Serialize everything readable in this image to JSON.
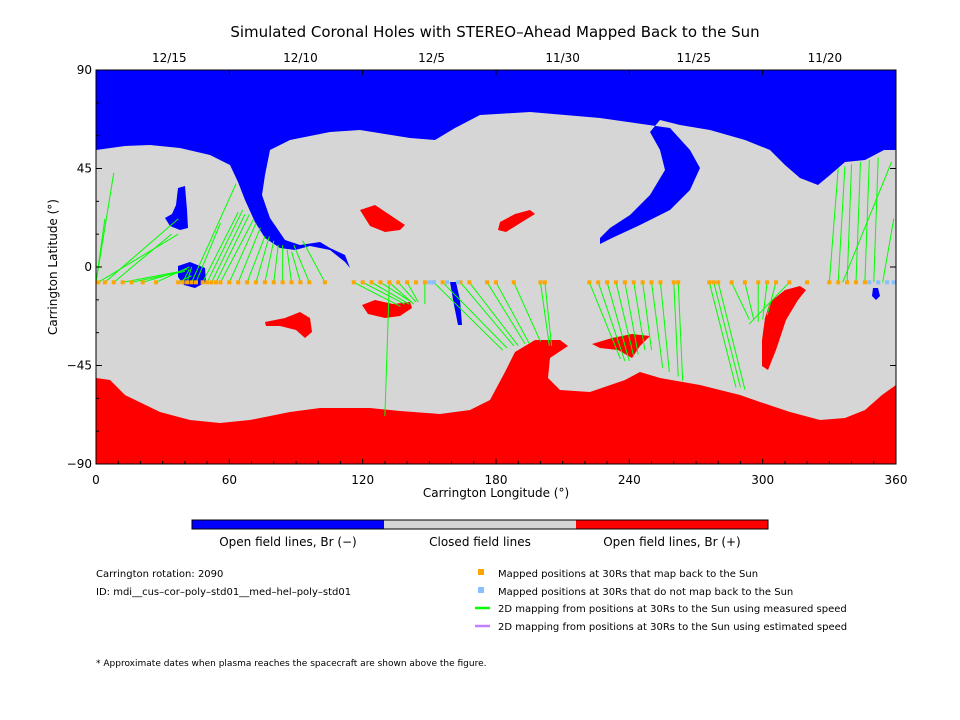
{
  "chart_data": {
    "type": "map",
    "title": "Simulated Coronal Holes with STEREO–Ahead Mapped Back to the Sun",
    "xlabel": "Carrington Longitude (°)",
    "ylabel": "Carrington Latitude (°)",
    "xlim": [
      0,
      360
    ],
    "ylim": [
      -90,
      90
    ],
    "x_ticks": [
      0,
      60,
      120,
      180,
      240,
      300,
      360
    ],
    "y_ticks": [
      90,
      45,
      0,
      -45,
      -90
    ],
    "y_tick_labels": [
      "90",
      "45",
      "0",
      "−45",
      "−90"
    ],
    "top_axis": [
      {
        "label": "12/15",
        "lon": 33
      },
      {
        "label": "12/10",
        "lon": 92
      },
      {
        "label": "12/5",
        "lon": 151
      },
      {
        "label": "11/30",
        "lon": 210
      },
      {
        "label": "11/25",
        "lon": 269
      },
      {
        "label": "11/20",
        "lon": 328
      }
    ],
    "colorbar": {
      "segments": [
        {
          "label": "Open field lines, Br (−)",
          "color": "#0000ff"
        },
        {
          "label": "Closed field lines",
          "color": "#d6d6d6"
        },
        {
          "label": "Open field lines, Br (+)",
          "color": "#ff0000"
        }
      ]
    },
    "info": {
      "rotation": "Carrington rotation: 2090",
      "id": "ID: mdi__cus–cor–poly–std01__med–hel–poly–std01"
    },
    "legend": [
      {
        "symbol": "square",
        "color": "#ffa500",
        "label": "Mapped positions at 30Rs that map back to the Sun"
      },
      {
        "symbol": "square",
        "color": "#87bfff",
        "label": "Mapped positions at 30Rs that do not map back to the Sun"
      },
      {
        "symbol": "line",
        "color": "#00ff00",
        "label": "2D mapping from positions at 30Rs to the Sun using measured speed"
      },
      {
        "symbol": "line",
        "color": "#c080ff",
        "label": "2D mapping from positions at 30Rs to the Sun using estimated speed"
      }
    ],
    "footnote": "* Approximate dates when plasma reaches the spacecraft are shown above the figure.",
    "spacecraft_latitude": -7,
    "mapped_positions_lon": [
      1,
      4,
      8,
      12,
      16,
      21,
      27,
      37,
      39,
      41,
      43,
      45,
      48,
      50,
      52,
      54,
      56,
      60,
      64,
      68,
      72,
      76,
      80,
      84,
      88,
      92,
      96,
      103,
      116,
      120,
      124,
      128,
      132,
      136,
      140,
      144,
      148,
      152,
      156,
      164,
      168,
      176,
      180,
      188,
      200,
      202,
      222,
      226,
      230,
      234,
      238,
      242,
      246,
      250,
      254,
      260,
      262,
      276,
      278,
      280,
      286,
      292,
      298,
      302,
      306,
      312,
      320,
      330,
      334,
      338,
      342,
      346
    ],
    "unmapped_positions_lon": [
      150,
      152,
      158,
      163,
      348,
      352,
      356,
      359
    ],
    "mapping_lines": [
      [
        1,
        -7,
        37,
        15
      ],
      [
        4,
        -7,
        37,
        22
      ],
      [
        8,
        -7,
        34,
        15
      ],
      [
        12,
        -7,
        38,
        -2
      ],
      [
        16,
        -7,
        40,
        -2
      ],
      [
        21,
        -7,
        41,
        -1
      ],
      [
        27,
        -7,
        42,
        0
      ],
      [
        37,
        -7,
        43,
        -4
      ],
      [
        39,
        -7,
        42,
        -1
      ],
      [
        41,
        -7,
        43,
        0
      ],
      [
        43,
        -7,
        63,
        38
      ],
      [
        45,
        -7,
        56,
        20
      ],
      [
        48,
        -7,
        64,
        25
      ],
      [
        50,
        -7,
        66,
        26
      ],
      [
        52,
        -7,
        67,
        24
      ],
      [
        54,
        -7,
        69,
        24
      ],
      [
        56,
        -7,
        71,
        22
      ],
      [
        60,
        -7,
        72,
        20
      ],
      [
        64,
        -7,
        74,
        18
      ],
      [
        68,
        -7,
        76,
        14
      ],
      [
        72,
        -7,
        78,
        14
      ],
      [
        76,
        -7,
        80,
        12
      ],
      [
        80,
        -7,
        82,
        10
      ],
      [
        84,
        -7,
        84,
        10
      ],
      [
        88,
        -7,
        86,
        8
      ],
      [
        92,
        -7,
        88,
        7
      ],
      [
        96,
        -7,
        89,
        10
      ],
      [
        103,
        -7,
        93,
        12
      ],
      [
        0,
        -7,
        0,
        -7
      ],
      [
        116,
        -7,
        137,
        -18
      ],
      [
        120,
        -7,
        139,
        -17
      ],
      [
        124,
        -7,
        141,
        -17
      ],
      [
        128,
        -7,
        142,
        -16
      ],
      [
        132,
        -7,
        143,
        -17
      ],
      [
        136,
        -7,
        144,
        -16
      ],
      [
        140,
        -7,
        145,
        -16
      ],
      [
        132,
        -7,
        130,
        -68
      ],
      [
        148,
        -7,
        148,
        -17
      ],
      [
        152,
        -7,
        183,
        -38
      ],
      [
        156,
        -7,
        185,
        -37
      ],
      [
        164,
        -7,
        188,
        -36
      ],
      [
        168,
        -7,
        190,
        -36
      ],
      [
        176,
        -7,
        193,
        -35
      ],
      [
        180,
        -7,
        195,
        -35
      ],
      [
        188,
        -7,
        200,
        -34
      ],
      [
        200,
        -7,
        204,
        -36
      ],
      [
        202,
        -7,
        205,
        -36
      ],
      [
        222,
        -7,
        236,
        -42
      ],
      [
        226,
        -7,
        238,
        -43
      ],
      [
        230,
        -7,
        240,
        -43
      ],
      [
        234,
        -7,
        242,
        -41
      ],
      [
        238,
        -7,
        244,
        -40
      ],
      [
        242,
        -7,
        247,
        -38
      ],
      [
        246,
        -7,
        250,
        -38
      ],
      [
        250,
        -7,
        255,
        -46
      ],
      [
        254,
        -7,
        258,
        -48
      ],
      [
        260,
        -7,
        262,
        -50
      ],
      [
        262,
        -7,
        264,
        -52
      ],
      [
        276,
        -7,
        288,
        -55
      ],
      [
        278,
        -7,
        290,
        -55
      ],
      [
        280,
        -7,
        292,
        -56
      ],
      [
        286,
        -7,
        294,
        -24
      ],
      [
        292,
        -7,
        296,
        -24
      ],
      [
        298,
        -7,
        298,
        -25
      ],
      [
        302,
        -7,
        300,
        -24
      ],
      [
        306,
        -7,
        302,
        -22
      ],
      [
        312,
        -7,
        294,
        -26
      ],
      [
        330,
        -7,
        334,
        45
      ],
      [
        334,
        -7,
        337,
        46
      ],
      [
        338,
        -7,
        340,
        47
      ],
      [
        342,
        -7,
        344,
        48
      ],
      [
        346,
        -7,
        348,
        49
      ],
      [
        350,
        -7,
        352,
        50
      ],
      [
        354,
        -7,
        359,
        22
      ],
      [
        336,
        -7,
        358,
        48
      ],
      [
        0,
        -7,
        8,
        43
      ],
      [
        0,
        -7,
        4,
        22
      ],
      [
        0,
        -7,
        0,
        20
      ]
    ]
  }
}
